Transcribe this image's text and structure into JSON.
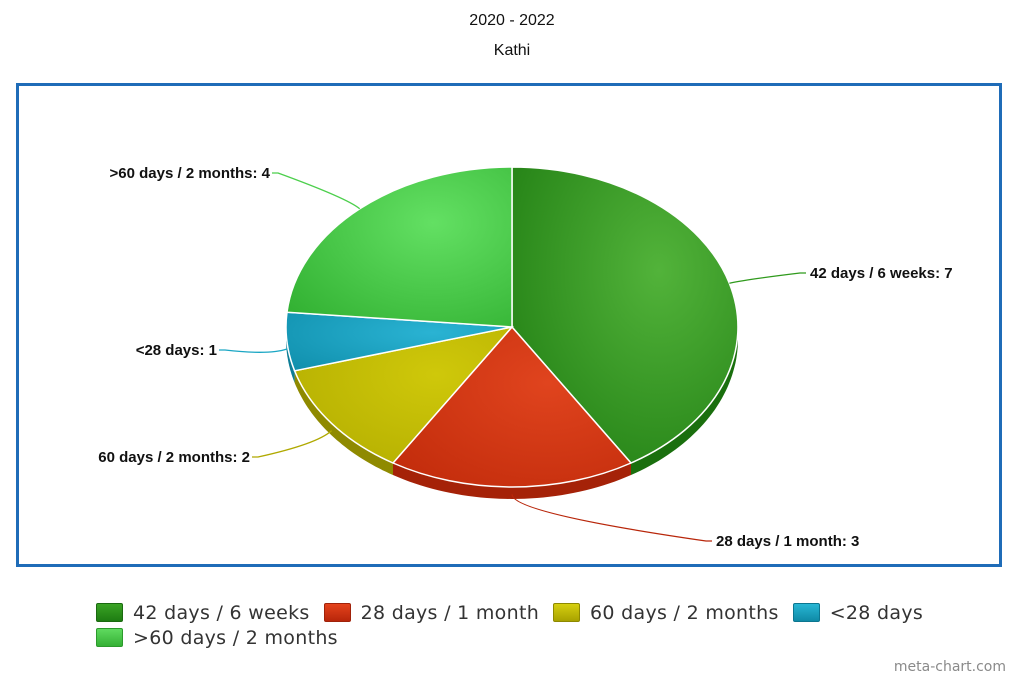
{
  "header": {
    "title": "2020 - 2022",
    "subtitle": "Kathi"
  },
  "chart_data": {
    "type": "pie",
    "title": "2020 - 2022",
    "subtitle": "Kathi",
    "slices": [
      {
        "label": "42 days / 6 weeks",
        "value": 7,
        "data_label": "42 days / 6 weeks: 7",
        "color": "#2f9a1c"
      },
      {
        "label": "28 days / 1 month",
        "value": 3,
        "data_label": "28 days / 1 month: 3",
        "color": "#d9320c"
      },
      {
        "label": "60 days / 2 months",
        "value": 2,
        "data_label": "60 days / 2 months: 2",
        "color": "#c9c200"
      },
      {
        "label": "<28 days",
        "value": 1,
        "data_label": "<28 days: 1",
        "color": "#1aa6c4"
      },
      {
        "label": ">60 days / 2 months",
        "value": 4,
        "data_label": ">60 days / 2 months: 4",
        "color": "#4ccf4c"
      }
    ],
    "legend_placement": "bottom"
  },
  "legend": {
    "rows": [
      [
        "42 days / 6 weeks",
        "28 days / 1 month",
        "60 days / 2 months",
        "<28 days"
      ],
      [
        ">60 days / 2 months"
      ]
    ]
  },
  "footer": {
    "credit": "meta-chart.com"
  }
}
